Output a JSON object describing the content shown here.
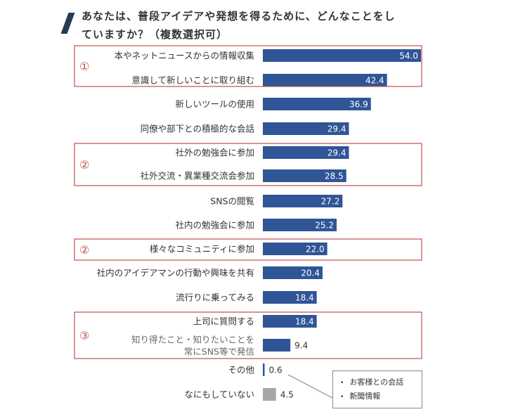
{
  "title": {
    "line1": "あなたは、普段アイデアや発想を得るために、どんなことをし",
    "line2": "ていますか？（複数選択可）"
  },
  "chart_data": {
    "type": "bar",
    "orientation": "horizontal",
    "categories": [
      [
        "本やネットニュースからの情報収集"
      ],
      [
        "意識して新しいことに取り組む"
      ],
      [
        "新しいツールの使用"
      ],
      [
        "同僚や部下との積極的な会話"
      ],
      [
        "社外の勉強会に参加"
      ],
      [
        "社外交流・異業種交流会参加"
      ],
      [
        "SNSの閲覧"
      ],
      [
        "社内の勉強会に参加"
      ],
      [
        "様々なコミュニティに参加"
      ],
      [
        "社内のアイデアマンの行動や興味を共有"
      ],
      [
        "流行りに乗ってみる"
      ],
      [
        "上司に質問する"
      ],
      [
        "知り得たこと・知りたいことを",
        "常にSNS等で発信"
      ],
      [
        "その他"
      ],
      [
        "なにもしていない"
      ]
    ],
    "values": [
      54.0,
      42.4,
      36.9,
      29.4,
      29.4,
      28.5,
      27.2,
      25.2,
      22.0,
      20.4,
      18.4,
      18.4,
      9.4,
      0.6,
      4.5
    ],
    "value_labels": [
      "54.0",
      "42.4",
      "36.9",
      "29.4",
      "29.4",
      "28.5",
      "27.2",
      "25.2",
      "22.0",
      "20.4",
      "18.4",
      "18.4",
      "9.4",
      "0.6",
      "4.5"
    ],
    "bar_colors": [
      "#2f5597",
      "#2f5597",
      "#2f5597",
      "#2f5597",
      "#2f5597",
      "#2f5597",
      "#2f5597",
      "#2f5597",
      "#2f5597",
      "#2f5597",
      "#2f5597",
      "#2f5597",
      "#2f5597",
      "#2f5597",
      "#a6a6a6"
    ],
    "xlim": [
      0,
      54
    ],
    "grid": false,
    "legend": "none",
    "groups": [
      {
        "label": "①",
        "rows": [
          0,
          1
        ]
      },
      {
        "label": "②",
        "rows": [
          4,
          5
        ]
      },
      {
        "label": "②",
        "rows": [
          8,
          8
        ]
      },
      {
        "label": "③",
        "rows": [
          11,
          12
        ]
      }
    ],
    "callout": {
      "items": [
        "お客様との会話",
        "新聞情報"
      ]
    }
  },
  "colors": {
    "bar": "#2f5597",
    "bar_none": "#a6a6a6",
    "group_border": "#c0504d",
    "title_accent": "#243d55"
  }
}
